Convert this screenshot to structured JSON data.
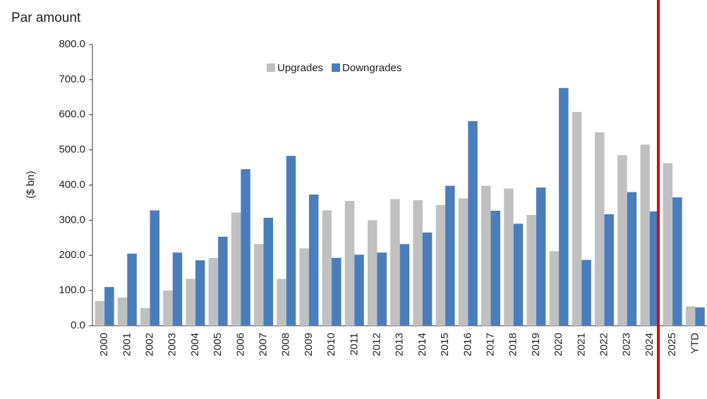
{
  "chart_data": {
    "type": "bar",
    "title": "Par amount",
    "y_label": "($ bn)",
    "categories": [
      "2000",
      "2001",
      "2002",
      "2003",
      "2004",
      "2005",
      "2006",
      "2007",
      "2008",
      "2009",
      "2010",
      "2011",
      "2012",
      "2013",
      "2014",
      "2015",
      "2016",
      "2017",
      "2018",
      "2019",
      "2020",
      "2021",
      "2022",
      "2023",
      "2024",
      "2025",
      "YTD"
    ],
    "series": [
      {
        "name": "Upgrades",
        "color": "#c0c0c0",
        "values": [
          70,
          80,
          50,
          100,
          133,
          193,
          322,
          232,
          133,
          220,
          328,
          355,
          300,
          360,
          357,
          343,
          362,
          398,
          390,
          315,
          212,
          608,
          550,
          485,
          515,
          462,
          55
        ]
      },
      {
        "name": "Downgrades",
        "color": "#4a7ebb",
        "values": [
          110,
          205,
          328,
          208,
          186,
          253,
          445,
          307,
          483,
          373,
          193,
          202,
          208,
          232,
          265,
          398,
          582,
          327,
          290,
          393,
          676,
          187,
          317,
          380,
          325,
          365,
          52
        ]
      }
    ],
    "ylim": [
      0,
      800
    ],
    "yticks": [
      {
        "value": 0,
        "label": "0.0"
      },
      {
        "value": 100,
        "label": "100.0"
      },
      {
        "value": 200,
        "label": "200.0"
      },
      {
        "value": 300,
        "label": "300.0"
      },
      {
        "value": 400,
        "label": "400.0"
      },
      {
        "value": 500,
        "label": "500.0"
      },
      {
        "value": 600,
        "label": "600.0"
      },
      {
        "value": 700,
        "label": "700.0"
      },
      {
        "value": 800,
        "label": "800.0"
      }
    ],
    "legend": "top"
  }
}
